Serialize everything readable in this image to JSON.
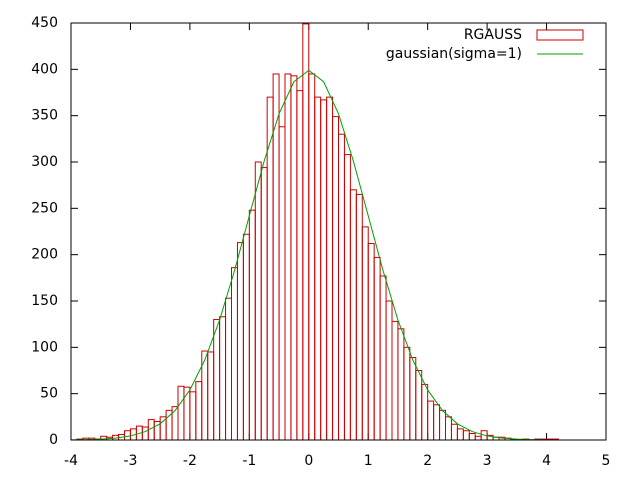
{
  "chart_data": {
    "type": "histogram",
    "bins": [
      -3.9,
      -3.8,
      -3.7,
      -3.6,
      -3.5,
      -3.4,
      -3.3,
      -3.2,
      -3.1,
      -3.0,
      -2.9,
      -2.8,
      -2.7,
      -2.6,
      -2.5,
      -2.4,
      -2.3,
      -2.2,
      -2.1,
      -2.0,
      -1.9,
      -1.8,
      -1.7,
      -1.6,
      -1.5,
      -1.4,
      -1.3,
      -1.2,
      -1.1,
      -1.0,
      -0.9,
      -0.8,
      -0.7,
      -0.6,
      -0.5,
      -0.4,
      -0.3,
      -0.2,
      -0.1,
      0,
      0.1,
      0.2,
      0.3,
      0.4,
      0.5,
      0.6,
      0.7,
      0.8,
      0.9,
      1.0,
      1.1,
      1.2,
      1.3,
      1.4,
      1.5,
      1.6,
      1.7,
      1.8,
      1.9,
      2.0,
      2.1,
      2.2,
      2.3,
      2.4,
      2.5,
      2.6,
      2.7,
      2.8,
      2.9,
      3.0,
      3.1,
      3.2,
      3.3,
      3.4,
      3.5,
      3.6,
      3.7,
      3.8,
      3.9,
      4.0,
      4.1,
      4.2
    ],
    "series": [
      {
        "name": "RGAUSS",
        "type": "histogram",
        "color": "#cc0000",
        "values": [
          1,
          2,
          2,
          1,
          4,
          3,
          5,
          6,
          10,
          12,
          15,
          14,
          22,
          20,
          25,
          32,
          36,
          58,
          57,
          52,
          63,
          96,
          95,
          130,
          133,
          153,
          186,
          213,
          222,
          248,
          300,
          294,
          370,
          395,
          338,
          395,
          393,
          377,
          449,
          395,
          370,
          367,
          370,
          349,
          330,
          308,
          270,
          265,
          230,
          212,
          197,
          177,
          150,
          128,
          120,
          100,
          89,
          75,
          60,
          42,
          38,
          32,
          25,
          17,
          12,
          10,
          7,
          4,
          10,
          5,
          3,
          3,
          2,
          1,
          0,
          1,
          0,
          1,
          1,
          1,
          1
        ]
      },
      {
        "name": "gaussian(sigma=1)",
        "type": "line",
        "color": "#00a000",
        "x": [
          -4,
          -3.75,
          -3.5,
          -3.25,
          -3,
          -2.75,
          -2.5,
          -2.25,
          -2,
          -1.75,
          -1.5,
          -1.25,
          -1,
          -0.75,
          -0.5,
          -0.25,
          0,
          0.25,
          0.5,
          0.75,
          1,
          1.25,
          1.5,
          1.75,
          2,
          2.25,
          2.5,
          2.75,
          3,
          3.25,
          3.5,
          3.75,
          4
        ],
        "values": [
          0.1,
          0.4,
          0.9,
          2.0,
          4.4,
          9.1,
          17.5,
          31.7,
          54.0,
          86.3,
          129.5,
          182.6,
          242.0,
          301.1,
          352.0,
          386.6,
          398.9,
          386.6,
          352.0,
          301.1,
          242.0,
          182.6,
          129.5,
          86.3,
          54.0,
          31.7,
          17.5,
          9.1,
          4.4,
          2.0,
          0.9,
          0.4,
          0.1
        ]
      }
    ],
    "xlim": [
      -4,
      5
    ],
    "xticks": [
      -4,
      -3,
      -2,
      -1,
      0,
      1,
      2,
      3,
      4,
      5
    ],
    "ylim": [
      0,
      450
    ],
    "yticks": [
      0,
      50,
      100,
      150,
      200,
      250,
      300,
      350,
      400,
      450
    ],
    "legend": "top-right"
  }
}
